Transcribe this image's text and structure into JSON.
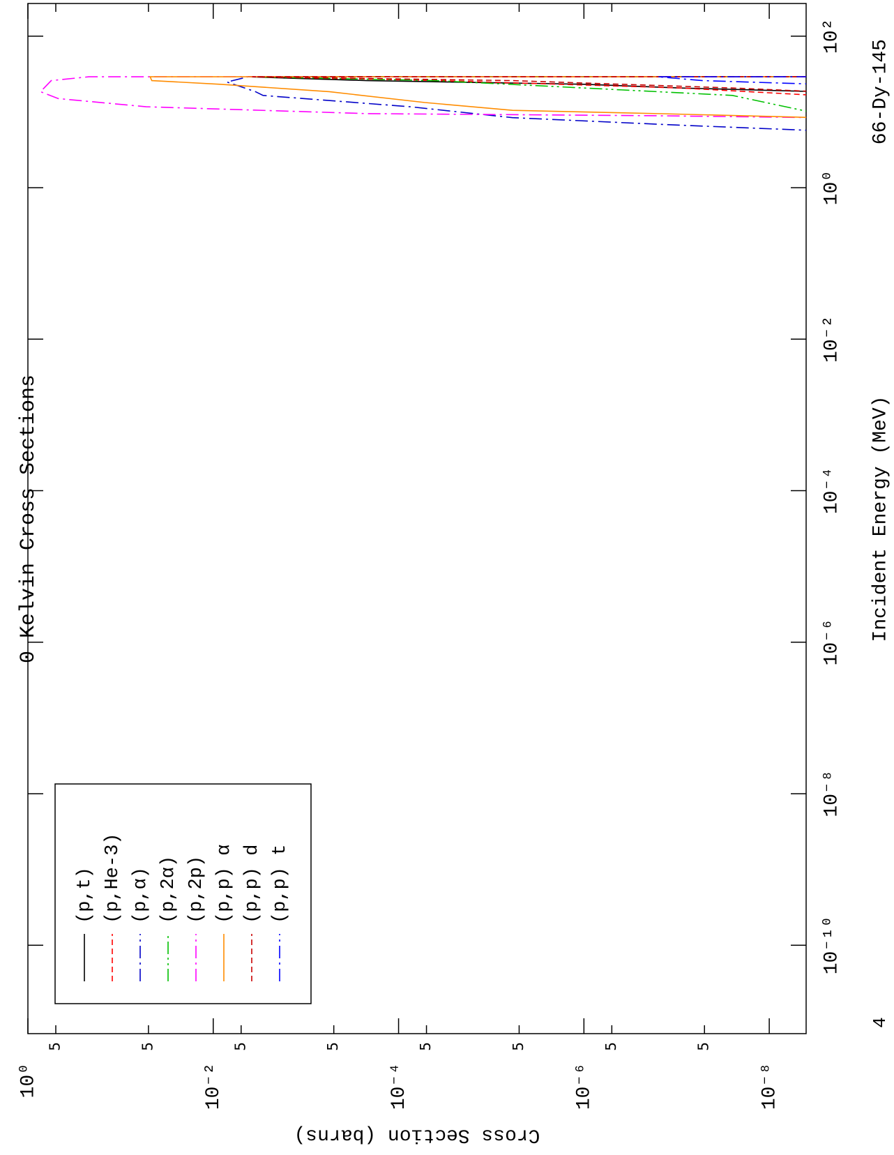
{
  "chart_data": {
    "type": "line",
    "title": "0 Kelvin Cross Sections",
    "x_label": "Incident Energy (MeV)",
    "y_label": "Cross Section (barns)",
    "annotations": [
      "66-Dy-145",
      "4"
    ],
    "x_scale": "log",
    "y_scale": "log",
    "xlim": [
      6.8e-12,
      270
    ],
    "ylim": [
      4e-09,
      1
    ],
    "xticks": [
      {
        "value": 1e-10,
        "label": "10⁻¹⁰"
      },
      {
        "value": 1e-08,
        "label": "10⁻⁸"
      },
      {
        "value": 1e-06,
        "label": "10⁻⁶"
      },
      {
        "value": 0.0001,
        "label": "10⁻⁴"
      },
      {
        "value": 0.01,
        "label": "10⁻²"
      },
      {
        "value": 1,
        "label": "10⁰"
      },
      {
        "value": 100,
        "label": "10²"
      }
    ],
    "yticks": [
      {
        "value": 1,
        "label": "10⁰"
      },
      {
        "value": 0.5,
        "label": "5"
      },
      {
        "value": 0.05,
        "label": "5"
      },
      {
        "value": 0.01,
        "label": "10⁻²"
      },
      {
        "value": 0.005,
        "label": "5"
      },
      {
        "value": 0.0005,
        "label": "5"
      },
      {
        "value": 0.0001,
        "label": "10⁻⁴"
      },
      {
        "value": 5e-05,
        "label": "5"
      },
      {
        "value": 5e-06,
        "label": "5"
      },
      {
        "value": 1e-06,
        "label": "10⁻⁶"
      },
      {
        "value": 5e-07,
        "label": "5"
      },
      {
        "value": 5e-08,
        "label": "5"
      },
      {
        "value": 1e-08,
        "label": "10⁻⁸"
      }
    ],
    "legend_position": "upper left",
    "series": [
      {
        "name": "(p,t)",
        "color": "#000000",
        "line_style": "solid",
        "x": [
          18.5,
          20.7,
          23.2,
          25.9,
          29.1,
          29.1
        ],
        "values": [
          3e-09,
          9e-08,
          1e-06,
          0.00022,
          0.0042,
          1e-12
        ]
      },
      {
        "name": "(p,He-3)",
        "color": "#ff0000",
        "line_style": "dashed",
        "x": [
          16.5,
          20.7,
          25.9,
          29.1,
          29.1
        ],
        "values": [
          3e-09,
          9e-08,
          3.6e-05,
          0.0038,
          1e-12
        ]
      },
      {
        "name": "(p,α)",
        "color": "#0000c8",
        "line_style": "dashdot",
        "x": [
          5.65,
          6.8,
          8.4,
          11.7,
          16.5,
          18.5,
          24.8,
          29.1,
          29.1
        ],
        "values": [
          3e-09,
          1.3e-07,
          5.9e-06,
          7.5e-05,
          0.0029,
          0.0035,
          0.0071,
          0.0042,
          1e-12
        ]
      },
      {
        "name": "(p,2α)",
        "color": "#00c000",
        "line_style": "dashdotdot",
        "x": [
          9.5,
          16.5,
          20.7,
          25.9,
          29.1,
          29.1
        ],
        "values": [
          3e-09,
          2.5e-08,
          1e-06,
          4e-05,
          0.0035,
          1e-12
        ]
      },
      {
        "name": "(p,2p)",
        "color": "#ff00ff",
        "line_style": "dashdot",
        "x": [
          8.4,
          8.9,
          9.5,
          11.7,
          15,
          18.5,
          25.9,
          29.1,
          29.1
        ],
        "values": [
          3e-09,
          1.6e-07,
          0.00022,
          0.053,
          0.47,
          0.73,
          0.56,
          0.22,
          1e-12
        ]
      },
      {
        "name": "(p,p) α",
        "color": "#ff8c00",
        "line_style": "solid",
        "x": [
          8.4,
          9.5,
          10.5,
          13.3,
          18.5,
          23.2,
          25.9,
          29.1,
          29.1
        ],
        "values": [
          3e-09,
          1.6e-07,
          5.9e-06,
          5.2e-05,
          0.00056,
          0.0085,
          0.046,
          0.048,
          1e-12
        ]
      },
      {
        "name": "(p,p) d",
        "color": "#c80000",
        "line_style": "dashed",
        "x": [
          18.5,
          20.7,
          25.9,
          29.1,
          29.1
        ],
        "values": [
          3e-09,
          2.5e-08,
          5.9e-06,
          0.0038,
          1e-12
        ]
      },
      {
        "name": "(p,p) t",
        "color": "#0000ff",
        "line_style": "dashdot",
        "x": [
          23.2,
          25.9,
          29.1,
          29.1
        ],
        "values": [
          3e-09,
          5.2e-08,
          1.6e-07,
          1e-12
        ]
      }
    ]
  }
}
